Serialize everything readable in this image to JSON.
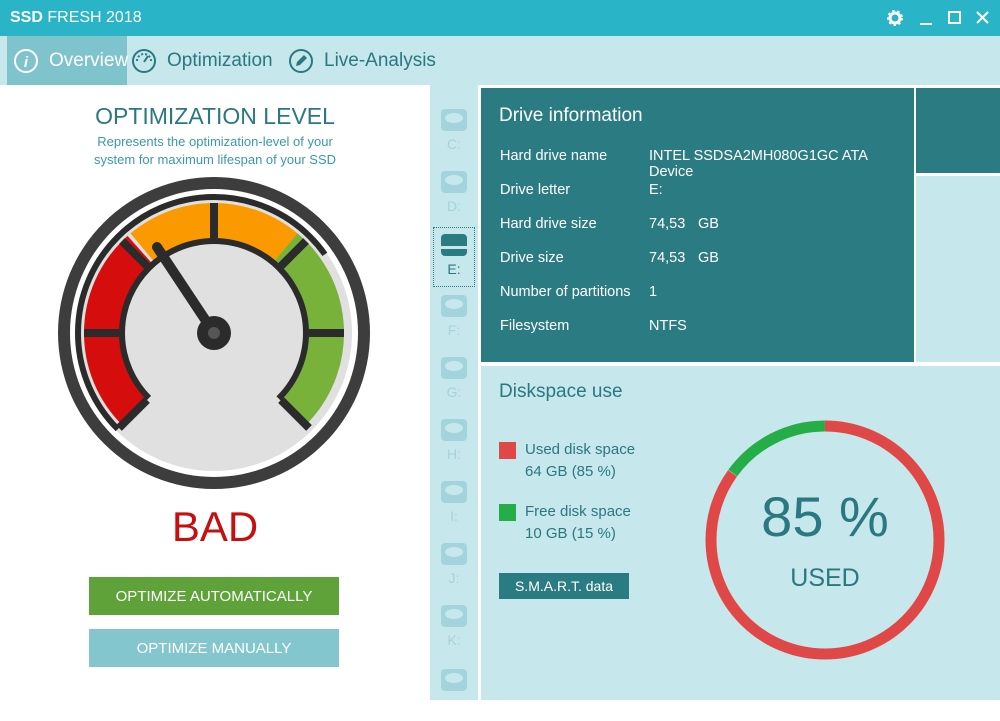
{
  "window": {
    "title_bold": "SSD",
    "title_rest": "FRESH 2018"
  },
  "tabs": [
    "Overview",
    "Optimization",
    "Live-Analysis"
  ],
  "optimization": {
    "title": "OPTIMIZATION LEVEL",
    "subtitle_lines": [
      "Represents the optimization-level of your",
      "system for maximum lifespan of your SSD"
    ],
    "status": "BAD",
    "buttons": [
      "OPTIMIZE AUTOMATICALLY",
      "OPTIMIZE MANUALLY"
    ]
  },
  "drives": {
    "letters": [
      "C:",
      "D:",
      "E:",
      "F:",
      "G:",
      "H:",
      "I:",
      "J:",
      "K:"
    ],
    "selected": 2
  },
  "drive_information": {
    "title": "Drive information",
    "rows": [
      [
        "Hard drive name",
        "INTEL SSDSA2MH080G1GC ATA Device"
      ],
      [
        "Drive letter",
        "E:"
      ],
      [
        "Hard drive size",
        "74,53",
        "GB"
      ],
      [
        "Drive size",
        "74,53",
        "GB"
      ],
      [
        "Number of partitions",
        "1"
      ],
      [
        "Filesystem",
        "NTFS"
      ]
    ]
  },
  "diskspace": {
    "title": "Diskspace use",
    "legend": [
      {
        "name": "Used disk space",
        "detail": "64 GB (85 %)",
        "color": "#e04848",
        "percent": 85
      },
      {
        "name": "Free disk space",
        "detail": "10 GB (15 %)",
        "color": "#25ad48",
        "percent": 15
      }
    ],
    "button": "S.M.A.R.T. data",
    "center_value": "85 %",
    "center_label": "USED"
  }
}
